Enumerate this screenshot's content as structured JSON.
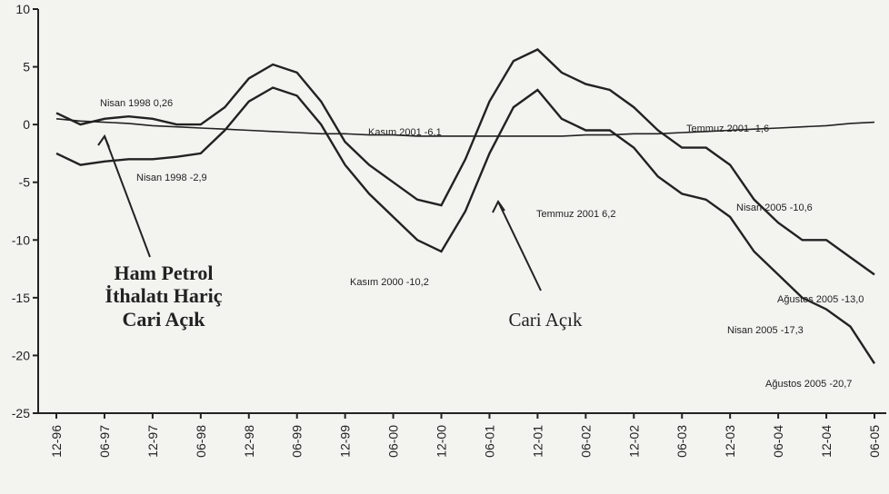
{
  "chart_data": {
    "type": "line",
    "categories": [
      "12-96",
      null,
      "06-97",
      null,
      "12-97",
      null,
      "06-98",
      null,
      "12-98",
      null,
      "06-99",
      null,
      "12-99",
      null,
      "06-00",
      null,
      "12-00",
      null,
      "06-01",
      null,
      "12-01",
      null,
      "06-02",
      null,
      "12-02",
      null,
      "06-03",
      null,
      "12-03",
      null,
      "06-04",
      null,
      "12-04",
      null,
      "06-05"
    ],
    "series": [
      {
        "name": "Ham Petrol İthalatı Hariç Cari Açık",
        "color": "#222222",
        "values": [
          1,
          0,
          0.5,
          0.7,
          0.5,
          0,
          0,
          1.5,
          4,
          5.2,
          4.5,
          2,
          -1.5,
          -3.5,
          -5,
          -6.5,
          -7,
          -3,
          2,
          5.5,
          6.5,
          4.5,
          3.5,
          3,
          1.5,
          -0.5,
          -2,
          -2,
          -3.5,
          -6.5,
          -8.5,
          -10,
          -10,
          -11.5,
          -13
        ]
      },
      {
        "name": "Cari Açık",
        "color": "#222222",
        "values": [
          -2.5,
          -3.5,
          -3.2,
          -3,
          -3,
          -2.8,
          -2.5,
          -0.5,
          2,
          3.2,
          2.5,
          0,
          -3.5,
          -6,
          -8,
          -10,
          -11,
          -7.5,
          -2.5,
          1.5,
          3,
          0.5,
          -0.5,
          -0.5,
          -2,
          -4.5,
          -6,
          -6.5,
          -8,
          -11,
          -13,
          -15,
          -16,
          -17.5,
          -20.7
        ]
      },
      {
        "color": "#222222",
        "values": [
          0.5,
          0.3,
          0.2,
          0.1,
          -0.1,
          -0.2,
          -0.3,
          -0.4,
          -0.5,
          -0.6,
          -0.7,
          -0.8,
          -0.8,
          -0.9,
          -0.9,
          -1,
          -1,
          -1,
          -1,
          -1,
          -1,
          -1,
          -0.9,
          -0.9,
          -0.8,
          -0.8,
          -0.7,
          -0.6,
          -0.5,
          -0.4,
          -0.3,
          -0.2,
          -0.1,
          0.1,
          0.2
        ]
      }
    ],
    "ylim": [
      -25,
      10
    ],
    "yticks": [
      -25,
      -20,
      -15,
      -10,
      -5,
      0,
      5,
      10
    ],
    "annotations": [
      "Nisan 1998 0,26",
      "Nisan 1998 -2,9",
      "Kasım 2001 -6,1",
      "Temmuz 2001 -1,6",
      "Temmuz 2001 6,2",
      "Kasım 2000 -10,2",
      "Nisan 2005 -10,6",
      "Ağustos 2005 -13,0",
      "Nisan 2005 -17,3",
      "Ağustos 2005 -20,7"
    ]
  }
}
